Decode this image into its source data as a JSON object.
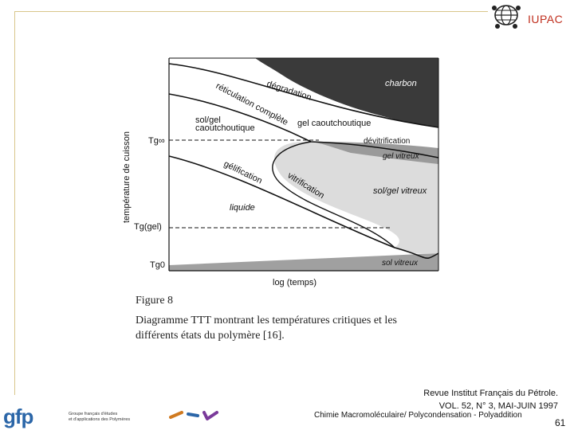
{
  "header": {
    "logo_text": "IUPAC"
  },
  "colors": {
    "accent": "#c0301f",
    "frame": "#d8c68a",
    "gfp_blue": "#2b66a8",
    "dark_region": "#3a3a3a",
    "mid_region": "#9a9a9a",
    "light_region": "#dedede"
  },
  "diagram": {
    "y_axis_label": "température de cuisson",
    "x_axis_label": "log (temps)",
    "y_ticks": [
      "Tg∞",
      "Tg(gel)",
      "Tg0"
    ],
    "regions": {
      "charbon": "charbon",
      "degradation": "dégradation",
      "reticulation": "réticulation complète",
      "sol_gel_caoutchoutique_1": "sol/gel",
      "sol_gel_caoutchoutique_2": "caoutchoutique",
      "gel_caoutchoutique": "gel caoutchoutique",
      "devitrification": "dévitrification",
      "gel_vitreux": "gel vitreux",
      "gelification": "gélification",
      "vitrification": "vitrification",
      "sol_gel_vitreux": "sol/gel vitreux",
      "liquide": "liquide",
      "sol_vitreux": "sol vitreux"
    }
  },
  "caption": {
    "figure_number": "Figure 8",
    "text": "Diagramme TTT montrant les températures critiques et les différents états du polymère [16]."
  },
  "footer": {
    "journal_line1": "Revue Institut Français du Pétrole.",
    "journal_line2": "VOL. 52, N° 3, MAI-JUIN 1997",
    "series": "Chimie Macromoléculaire/ Polycondensation - Polyaddition",
    "page_number": "61",
    "gfp_logo": "gfp",
    "gfp_tagline_1": "Groupe français d'études",
    "gfp_tagline_2": "et d'applications des Polymères"
  }
}
